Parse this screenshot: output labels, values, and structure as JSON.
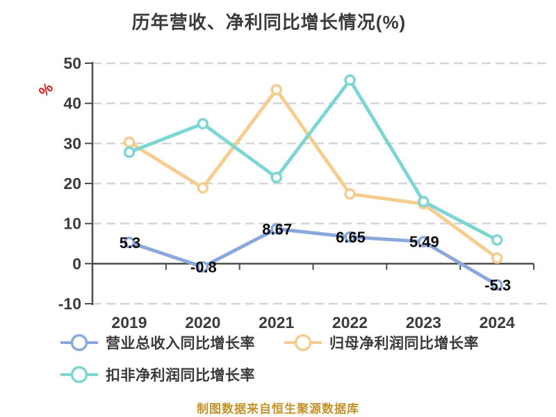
{
  "chart_data": {
    "type": "line",
    "title": "历年营收、净利同比增长情况(%)",
    "categories": [
      "2019",
      "2020",
      "2021",
      "2022",
      "2023",
      "2024"
    ],
    "series": [
      {
        "name": "营业总收入同比增长率",
        "color": "#8ba8dc",
        "values": [
          5.3,
          -0.8,
          8.67,
          6.65,
          5.49,
          -5.3
        ],
        "point_labels": [
          "5.3",
          "-0.8",
          "8.67",
          "6.65",
          "5.49",
          "-5.3"
        ]
      },
      {
        "name": "归母净利润同比增长率",
        "color": "#f6cd8e",
        "values": [
          30.3,
          18.9,
          43.4,
          17.4,
          14.9,
          1.4
        ],
        "point_labels": []
      },
      {
        "name": "扣非净利润同比增长率",
        "color": "#7dd6d3",
        "values": [
          27.8,
          34.9,
          21.5,
          45.8,
          15.5,
          5.9
        ],
        "point_labels": []
      }
    ],
    "xlabel": "",
    "ylabel": "%",
    "ylim": [
      -10,
      50
    ],
    "y_ticks": [
      50,
      40,
      30,
      20,
      10,
      0,
      -10
    ],
    "grid": "horizontal-dashed",
    "legend_position": "bottom-left"
  },
  "y_unit_label": "%",
  "footer": "制图数据来自恒生聚源数据库",
  "style_colors": {
    "axis": "#4b4b4b",
    "gridline": "#d5d5d5",
    "tick_label": "#3b3b3b",
    "data_label": "#0d0d0d",
    "unit_label_red": "#e11414",
    "title": "#3b3b3b",
    "footer": "#c6922b"
  }
}
